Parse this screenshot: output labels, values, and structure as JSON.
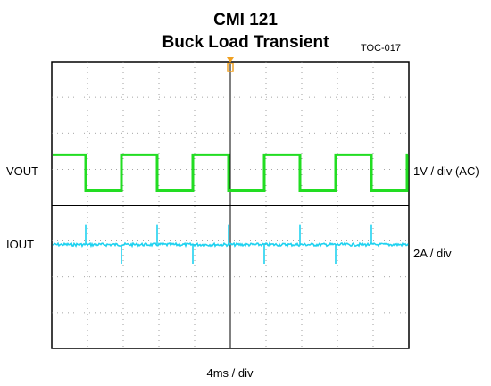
{
  "title": "CMI  121",
  "subtitle": "Buck Load Transient",
  "figure_id": "TOC-017",
  "colors": {
    "vout": "#1fd2f0",
    "iout": "#22dd22",
    "grid": "#888888",
    "trigger": "#f0a020"
  },
  "chart_data": {
    "type": "line",
    "title": "Buck Load Transient",
    "grid": true,
    "x_divisions": 10,
    "y_divisions": 8,
    "time_scale": "4ms / div",
    "x": [
      0,
      0.95,
      2.95,
      4.95,
      6.95,
      8.95,
      10
    ],
    "series": [
      {
        "name": "VOUT",
        "scale": "1V / div (AC)",
        "level_div": 2.9,
        "spike_up_div": [
          0.95,
          2.95,
          4.95,
          6.95,
          8.95
        ],
        "spike_down_div": [
          1.95,
          3.95,
          5.95,
          7.95
        ]
      },
      {
        "name": "IOUT",
        "scale": "2A / div",
        "high_div": 5.4,
        "low_div": 4.4,
        "rising_div": [
          1.95,
          3.95,
          5.95,
          7.95,
          9.95
        ],
        "falling_div": [
          0.95,
          2.95,
          4.95,
          6.95,
          8.95
        ]
      }
    ]
  }
}
